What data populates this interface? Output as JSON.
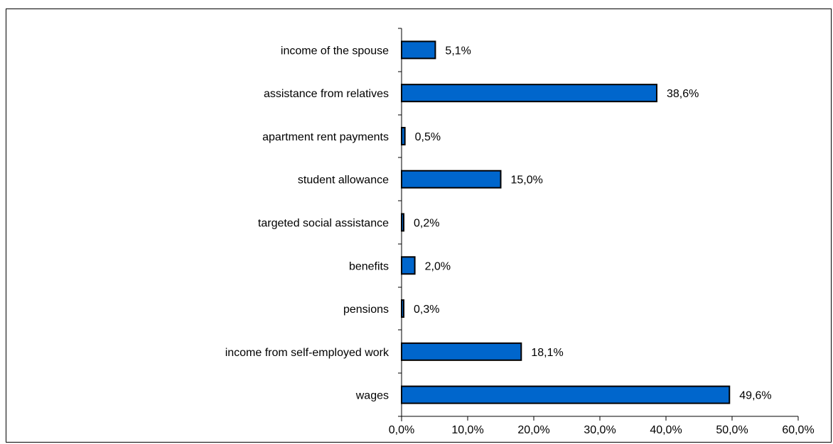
{
  "chart_data": {
    "type": "bar",
    "orientation": "horizontal",
    "categories": [
      "income of the spouse",
      "assistance from relatives",
      "apartment rent payments",
      "student allowance",
      "targeted social assistance",
      "benefits",
      "pensions",
      "income from self-employed work",
      "wages"
    ],
    "values": [
      5.1,
      38.6,
      0.5,
      15.0,
      0.2,
      2.0,
      0.3,
      18.1,
      49.6
    ],
    "value_labels": [
      "5,1%",
      "38,6%",
      "0,5%",
      "15,0%",
      "0,2%",
      "2,0%",
      "0,3%",
      "18,1%",
      "49,6%"
    ],
    "xlim": [
      0,
      60
    ],
    "x_ticks": [
      0,
      10,
      20,
      30,
      40,
      50,
      60
    ],
    "x_tick_labels": [
      "0,0%",
      "10,0%",
      "20,0%",
      "30,0%",
      "40,0%",
      "50,0%",
      "60,0%"
    ],
    "title": "",
    "xlabel": "",
    "ylabel": "",
    "grid": false,
    "legend": "none",
    "bar_color": "#0066cc",
    "bar_edge_color": "#000000"
  }
}
